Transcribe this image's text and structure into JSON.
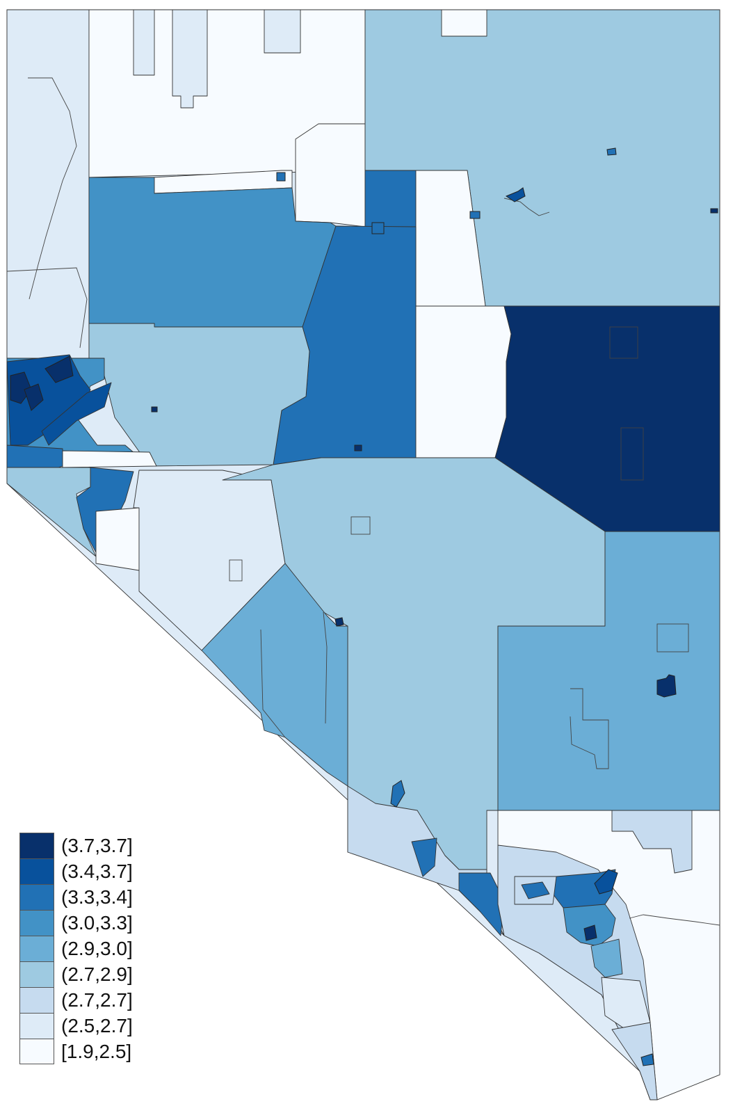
{
  "colors": {
    "c1": "#08306b",
    "c2": "#08519c",
    "c3": "#2171b5",
    "c4": "#4292c6",
    "c5": "#6baed6",
    "c6": "#9ecae1",
    "c7": "#c6dbef",
    "c8": "#deebf7",
    "c9": "#f7fbff"
  },
  "legend": [
    {
      "label": "(3.7,3.7]",
      "color": "#08306b"
    },
    {
      "label": "(3.4,3.7]",
      "color": "#08519c"
    },
    {
      "label": "(3.3,3.4]",
      "color": "#2171b5"
    },
    {
      "label": "(3.0,3.3]",
      "color": "#4292c6"
    },
    {
      "label": "(2.9,3.0]",
      "color": "#6baed6"
    },
    {
      "label": "(2.7,2.9]",
      "color": "#9ecae1"
    },
    {
      "label": "(2.7,2.7]",
      "color": "#c6dbef"
    },
    {
      "label": "(2.5,2.7]",
      "color": "#deebf7"
    },
    {
      "label": "[1.9,2.5]",
      "color": "#f7fbff"
    }
  ]
}
